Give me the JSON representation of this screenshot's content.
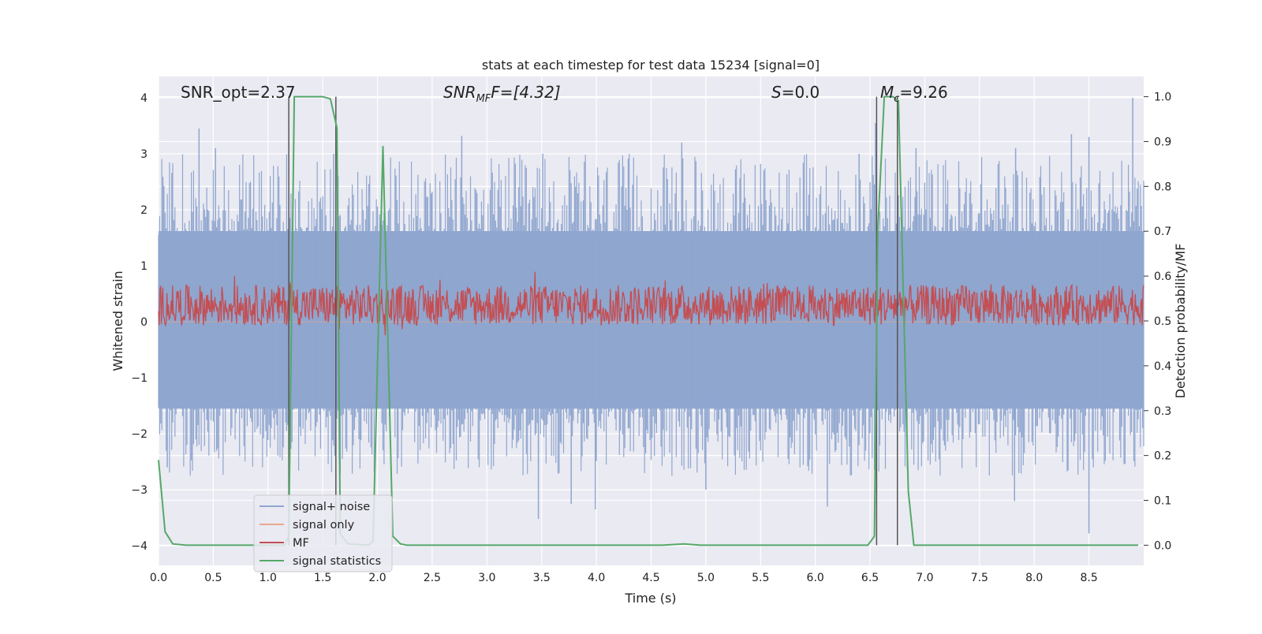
{
  "chart_data": {
    "type": "line",
    "title": "stats at each timestep for test data 15234 [signal=0]",
    "xlabel": "Time (s)",
    "ylabel": "Whitened strain",
    "y2label": "Detection probability/MF",
    "xlim": [
      0.0,
      9.0
    ],
    "ylim": [
      -4.35,
      4.38
    ],
    "y2lim": [
      -0.045,
      1.045
    ],
    "xticks": [
      "0.0",
      "0.5",
      "1.0",
      "1.5",
      "2.0",
      "2.5",
      "3.0",
      "3.5",
      "4.0",
      "4.5",
      "5.0",
      "5.5",
      "6.0",
      "6.5",
      "7.0",
      "7.5",
      "8.0",
      "8.5"
    ],
    "yticks": [
      "4",
      "3",
      "2",
      "1",
      "0",
      "−1",
      "−2",
      "−3",
      "−4"
    ],
    "y2ticks": [
      "1.0",
      "0.9",
      "0.8",
      "0.7",
      "0.6",
      "0.5",
      "0.4",
      "0.3",
      "0.2",
      "0.1",
      "0.0"
    ],
    "grid": true,
    "annotations": {
      "snr_opt": "SNR_opt=2.37",
      "snr_mf_base": "SNR",
      "snr_mf_sub": "MF",
      "snr_mf_tail": "F=[4.32]",
      "s_var": "S",
      "s_value": "=0.0",
      "mc_base": "M",
      "mc_sub": "c",
      "mc_value": "=9.26"
    },
    "vertical_markers_s": [
      1.19,
      1.62,
      6.56,
      6.75
    ],
    "series": [
      {
        "name": "signal+ noise",
        "color": "#8fa6cf",
        "axis": "left",
        "kind": "noise",
        "core_band": [
          -1.55,
          1.62
        ],
        "peaks_high": [
          {
            "t": 0.37,
            "v": 3.45
          },
          {
            "t": 0.52,
            "v": 3.1
          },
          {
            "t": 1.6,
            "v": 3.0
          },
          {
            "t": 1.64,
            "v": 2.6
          },
          {
            "t": 2.77,
            "v": 3.32
          },
          {
            "t": 3.51,
            "v": 3.0
          },
          {
            "t": 4.78,
            "v": 3.2
          },
          {
            "t": 6.4,
            "v": 3.0
          },
          {
            "t": 6.55,
            "v": 3.55
          },
          {
            "t": 6.92,
            "v": 3.1
          },
          {
            "t": 7.83,
            "v": 3.1
          },
          {
            "t": 8.34,
            "v": 3.35
          },
          {
            "t": 8.5,
            "v": 3.3
          },
          {
            "t": 8.9,
            "v": 4.0
          }
        ],
        "peaks_low": [
          {
            "t": 0.08,
            "v": -2.6
          },
          {
            "t": 3.47,
            "v": -3.52
          },
          {
            "t": 3.77,
            "v": -3.25
          },
          {
            "t": 3.99,
            "v": -3.35
          },
          {
            "t": 5.0,
            "v": -3.0
          },
          {
            "t": 6.11,
            "v": -3.3
          },
          {
            "t": 7.82,
            "v": -3.2
          },
          {
            "t": 8.5,
            "v": -3.78
          }
        ]
      },
      {
        "name": "signal only",
        "color": "#e8a88e",
        "axis": "left",
        "kind": "flat",
        "value": 0.0
      },
      {
        "name": "MF",
        "color": "#c44e52",
        "axis": "right",
        "kind": "noise",
        "center": 0.535,
        "amplitude": 0.045
      },
      {
        "name": "signal statistics",
        "color": "#55a868",
        "axis": "right",
        "kind": "line",
        "x": [
          0.0,
          0.06,
          0.13,
          0.25,
          1.15,
          1.19,
          1.24,
          1.5,
          1.57,
          1.63,
          1.66,
          1.73,
          1.92,
          1.96,
          2.05,
          2.14,
          2.21,
          2.27,
          4.6,
          4.8,
          4.95,
          6.48,
          6.54,
          6.57,
          6.63,
          6.71,
          6.76,
          6.85,
          6.9,
          8.95
        ],
        "y": [
          0.19,
          0.03,
          0.003,
          0.0,
          0.0,
          0.02,
          1.0,
          1.0,
          0.995,
          0.93,
          0.025,
          0.003,
          0.0,
          0.01,
          0.89,
          0.02,
          0.003,
          0.0,
          0.0,
          0.003,
          0.0,
          0.0,
          0.02,
          0.7,
          1.0,
          1.0,
          0.99,
          0.12,
          0.0,
          0.0
        ]
      }
    ],
    "legend_position": "lower-left"
  }
}
